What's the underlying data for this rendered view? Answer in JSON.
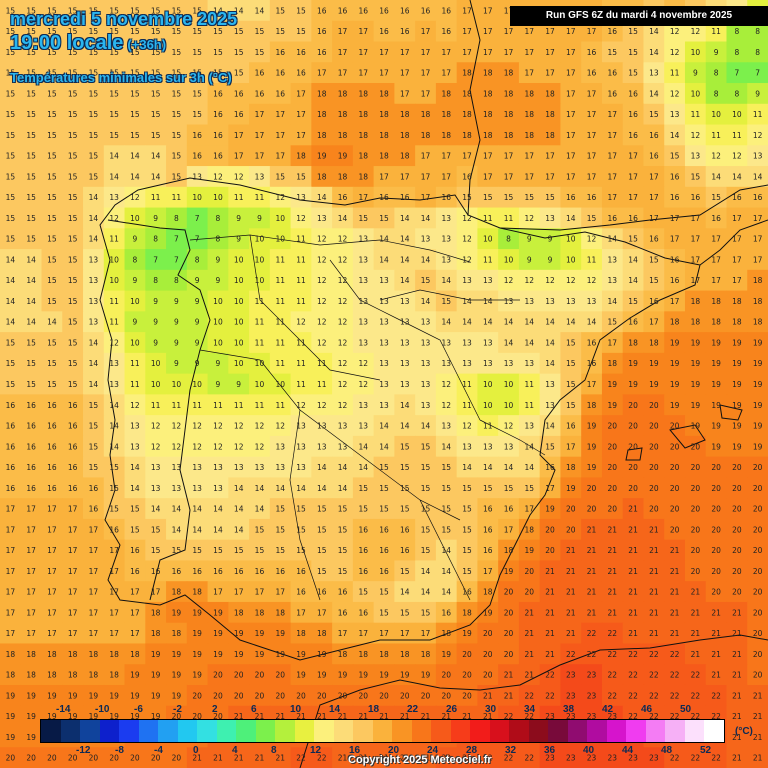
{
  "header": {
    "date_line": "mercredi 5 novembre 2025",
    "time_line": "19:00 locale",
    "lead_time": "(+36h)",
    "variable": "Températures minimales sur 3h (°C)",
    "run_info": "Run GFS 6Z du mardi 4 novembre 2025"
  },
  "legend": {
    "unit": "(°C)",
    "top_labels": [
      "-14",
      "-10",
      "-6",
      "-2",
      "2",
      "6",
      "10",
      "14",
      "18",
      "22",
      "26",
      "30",
      "34",
      "38",
      "42",
      "46",
      "50"
    ],
    "bottom_labels": [
      "-12",
      "-8",
      "-4",
      "0",
      "4",
      "8",
      "12",
      "16",
      "20",
      "24",
      "28",
      "32",
      "36",
      "40",
      "44",
      "48",
      "52"
    ],
    "colors": [
      "#071a46",
      "#0c2f6e",
      "#10439c",
      "#0d20cc",
      "#1b3cf0",
      "#1f72f2",
      "#22a0f2",
      "#22c8f0",
      "#33e0e2",
      "#3ef0b0",
      "#4ef07a",
      "#7cf04c",
      "#b4f03c",
      "#e8f040",
      "#fcf07c",
      "#fcdc78",
      "#fcc860",
      "#fab23c",
      "#f99424",
      "#f8761a",
      "#f65a1a",
      "#f63c1a",
      "#f21c1a",
      "#d8101c",
      "#b00c18",
      "#8c0c1c",
      "#780a3a",
      "#900c70",
      "#b00ca0",
      "#d614cc",
      "#f03cf0",
      "#f47cf4",
      "#f6b0f6",
      "#fce0fc",
      "#ffffff"
    ]
  },
  "map_data": {
    "grid_columns": 37,
    "grid_rows": 37,
    "origin_description": "sample values of min temperature grid",
    "rows": [
      [
        15,
        15,
        15,
        15,
        15,
        15,
        15,
        15,
        15,
        15,
        14,
        14,
        14,
        15,
        15,
        16,
        16,
        16,
        16,
        16,
        16,
        16,
        17,
        17,
        17,
        17,
        17,
        17,
        17,
        16,
        16,
        15,
        16,
        15,
        14,
        13,
        10
      ],
      [
        15,
        15,
        15,
        15,
        15,
        15,
        15,
        15,
        15,
        15,
        15,
        15,
        15,
        15,
        15,
        16,
        17,
        17,
        16,
        16,
        17,
        16,
        17,
        17,
        17,
        17,
        17,
        17,
        17,
        16,
        15,
        14,
        12,
        12,
        11,
        8,
        8
      ],
      [
        15,
        15,
        15,
        15,
        15,
        15,
        15,
        15,
        15,
        15,
        15,
        15,
        15,
        16,
        16,
        16,
        17,
        17,
        17,
        17,
        17,
        17,
        17,
        17,
        17,
        17,
        17,
        17,
        16,
        15,
        15,
        14,
        12,
        10,
        9,
        8,
        8
      ],
      [
        15,
        15,
        15,
        15,
        15,
        15,
        15,
        15,
        15,
        15,
        15,
        15,
        16,
        16,
        16,
        17,
        17,
        17,
        17,
        17,
        17,
        17,
        18,
        18,
        18,
        17,
        17,
        17,
        16,
        16,
        15,
        13,
        11,
        9,
        8,
        7,
        7
      ],
      [
        15,
        15,
        15,
        15,
        15,
        15,
        15,
        15,
        15,
        15,
        16,
        16,
        16,
        16,
        17,
        18,
        18,
        18,
        18,
        17,
        17,
        18,
        18,
        18,
        18,
        18,
        18,
        17,
        17,
        16,
        16,
        14,
        12,
        10,
        8,
        8,
        9
      ],
      [
        15,
        15,
        15,
        15,
        15,
        15,
        15,
        15,
        15,
        15,
        16,
        16,
        17,
        17,
        17,
        18,
        18,
        18,
        18,
        18,
        18,
        18,
        18,
        18,
        18,
        18,
        18,
        17,
        17,
        17,
        16,
        15,
        13,
        11,
        10,
        10,
        11
      ],
      [
        15,
        15,
        15,
        15,
        15,
        15,
        15,
        15,
        15,
        16,
        16,
        17,
        17,
        17,
        17,
        18,
        18,
        18,
        18,
        18,
        18,
        18,
        18,
        18,
        18,
        18,
        18,
        17,
        17,
        17,
        16,
        16,
        14,
        12,
        11,
        11,
        12
      ],
      [
        15,
        15,
        15,
        15,
        15,
        14,
        14,
        14,
        15,
        16,
        16,
        17,
        17,
        17,
        18,
        19,
        19,
        18,
        18,
        18,
        17,
        17,
        17,
        17,
        17,
        17,
        17,
        17,
        17,
        17,
        17,
        16,
        15,
        13,
        12,
        12,
        13
      ],
      [
        15,
        15,
        15,
        15,
        15,
        14,
        14,
        14,
        15,
        13,
        12,
        12,
        13,
        15,
        15,
        18,
        18,
        18,
        17,
        17,
        17,
        17,
        16,
        17,
        17,
        17,
        17,
        17,
        17,
        17,
        17,
        17,
        16,
        15,
        14,
        14,
        14
      ],
      [
        15,
        15,
        15,
        15,
        14,
        13,
        12,
        11,
        11,
        10,
        10,
        11,
        11,
        12,
        13,
        14,
        16,
        17,
        16,
        16,
        17,
        16,
        15,
        15,
        15,
        15,
        15,
        16,
        16,
        17,
        17,
        17,
        16,
        16,
        15,
        16,
        16
      ],
      [
        15,
        15,
        15,
        15,
        14,
        12,
        10,
        9,
        8,
        7,
        8,
        9,
        9,
        10,
        12,
        13,
        14,
        15,
        15,
        14,
        14,
        13,
        12,
        11,
        11,
        12,
        13,
        14,
        15,
        16,
        16,
        17,
        17,
        17,
        16,
        17,
        17
      ],
      [
        15,
        15,
        15,
        15,
        14,
        11,
        9,
        8,
        7,
        7,
        8,
        9,
        10,
        10,
        11,
        12,
        12,
        13,
        14,
        14,
        13,
        13,
        12,
        10,
        8,
        9,
        9,
        10,
        12,
        14,
        15,
        16,
        17,
        17,
        17,
        17,
        17
      ],
      [
        14,
        14,
        15,
        15,
        13,
        10,
        8,
        7,
        7,
        8,
        9,
        10,
        10,
        11,
        11,
        12,
        12,
        13,
        14,
        14,
        14,
        13,
        12,
        11,
        10,
        9,
        9,
        10,
        11,
        13,
        14,
        15,
        16,
        17,
        17,
        17,
        17
      ],
      [
        14,
        14,
        15,
        15,
        13,
        10,
        9,
        8,
        8,
        9,
        9,
        10,
        10,
        11,
        11,
        12,
        12,
        13,
        13,
        14,
        15,
        14,
        13,
        13,
        12,
        12,
        12,
        12,
        12,
        13,
        14,
        15,
        16,
        17,
        17,
        17,
        18
      ],
      [
        14,
        14,
        15,
        15,
        13,
        11,
        10,
        9,
        9,
        9,
        10,
        10,
        11,
        11,
        11,
        12,
        12,
        13,
        13,
        13,
        14,
        15,
        14,
        14,
        13,
        13,
        13,
        13,
        13,
        14,
        15,
        16,
        17,
        18,
        18,
        18,
        18
      ],
      [
        14,
        14,
        14,
        15,
        13,
        11,
        9,
        9,
        9,
        9,
        10,
        10,
        11,
        11,
        12,
        12,
        12,
        13,
        13,
        13,
        13,
        14,
        14,
        14,
        14,
        14,
        14,
        14,
        14,
        15,
        16,
        17,
        18,
        18,
        18,
        18,
        18
      ],
      [
        15,
        15,
        15,
        15,
        14,
        12,
        10,
        9,
        9,
        9,
        10,
        10,
        11,
        11,
        11,
        12,
        12,
        13,
        13,
        13,
        13,
        13,
        13,
        13,
        14,
        14,
        14,
        15,
        16,
        17,
        18,
        18,
        19,
        19,
        19,
        19,
        19
      ],
      [
        15,
        15,
        15,
        15,
        14,
        13,
        11,
        10,
        9,
        9,
        9,
        10,
        10,
        11,
        11,
        11,
        12,
        12,
        13,
        13,
        13,
        13,
        13,
        13,
        13,
        13,
        14,
        15,
        16,
        18,
        19,
        19,
        19,
        19,
        19,
        19,
        19
      ],
      [
        15,
        15,
        15,
        15,
        14,
        13,
        11,
        10,
        10,
        10,
        9,
        9,
        10,
        10,
        11,
        11,
        12,
        12,
        13,
        13,
        13,
        12,
        11,
        10,
        10,
        11,
        13,
        15,
        17,
        19,
        19,
        19,
        19,
        19,
        19,
        19,
        19
      ],
      [
        16,
        16,
        16,
        16,
        15,
        14,
        12,
        11,
        11,
        11,
        11,
        11,
        11,
        11,
        12,
        12,
        12,
        13,
        13,
        14,
        13,
        12,
        11,
        10,
        10,
        11,
        13,
        15,
        18,
        19,
        20,
        20,
        19,
        19,
        19,
        19,
        19
      ],
      [
        16,
        16,
        16,
        16,
        15,
        14,
        13,
        12,
        12,
        12,
        12,
        12,
        12,
        12,
        13,
        13,
        13,
        13,
        14,
        14,
        14,
        13,
        12,
        11,
        12,
        13,
        14,
        16,
        19,
        20,
        20,
        20,
        20,
        19,
        19,
        19,
        19
      ],
      [
        16,
        16,
        16,
        16,
        15,
        14,
        13,
        12,
        12,
        12,
        12,
        12,
        12,
        13,
        13,
        13,
        13,
        14,
        14,
        15,
        15,
        14,
        13,
        13,
        13,
        14,
        15,
        17,
        19,
        20,
        20,
        20,
        20,
        20,
        19,
        19,
        19
      ],
      [
        16,
        16,
        16,
        16,
        15,
        15,
        14,
        13,
        13,
        13,
        13,
        13,
        13,
        13,
        13,
        14,
        14,
        14,
        15,
        15,
        15,
        15,
        14,
        14,
        14,
        14,
        16,
        18,
        19,
        20,
        20,
        20,
        20,
        20,
        20,
        20,
        20
      ],
      [
        16,
        16,
        16,
        16,
        16,
        15,
        14,
        13,
        13,
        13,
        13,
        14,
        14,
        14,
        14,
        14,
        14,
        15,
        15,
        15,
        15,
        15,
        15,
        15,
        15,
        15,
        17,
        19,
        20,
        20,
        20,
        20,
        20,
        20,
        20,
        20,
        20
      ],
      [
        17,
        17,
        17,
        17,
        16,
        15,
        15,
        14,
        14,
        14,
        14,
        14,
        14,
        15,
        15,
        15,
        15,
        15,
        15,
        15,
        15,
        15,
        15,
        16,
        16,
        17,
        19,
        20,
        20,
        20,
        21,
        20,
        20,
        20,
        20,
        20,
        20
      ],
      [
        17,
        17,
        17,
        17,
        17,
        16,
        15,
        15,
        14,
        14,
        14,
        14,
        15,
        15,
        15,
        15,
        15,
        16,
        16,
        16,
        15,
        15,
        15,
        16,
        17,
        18,
        20,
        20,
        21,
        21,
        21,
        21,
        20,
        20,
        20,
        20,
        20
      ],
      [
        17,
        17,
        17,
        17,
        17,
        17,
        16,
        15,
        15,
        15,
        15,
        15,
        15,
        15,
        15,
        15,
        15,
        16,
        16,
        16,
        15,
        14,
        15,
        16,
        18,
        19,
        20,
        21,
        21,
        21,
        21,
        21,
        21,
        20,
        20,
        20,
        20
      ],
      [
        17,
        17,
        17,
        17,
        17,
        17,
        16,
        16,
        16,
        16,
        16,
        16,
        16,
        16,
        16,
        15,
        15,
        16,
        16,
        15,
        14,
        14,
        15,
        17,
        19,
        20,
        21,
        21,
        21,
        21,
        21,
        21,
        21,
        20,
        20,
        20,
        20
      ],
      [
        17,
        17,
        17,
        17,
        17,
        17,
        17,
        17,
        18,
        18,
        17,
        17,
        17,
        17,
        16,
        16,
        16,
        15,
        15,
        14,
        14,
        14,
        16,
        18,
        20,
        20,
        21,
        21,
        21,
        21,
        21,
        21,
        21,
        21,
        20,
        20,
        20
      ],
      [
        17,
        17,
        17,
        17,
        17,
        17,
        17,
        18,
        19,
        19,
        19,
        18,
        18,
        18,
        17,
        17,
        16,
        16,
        15,
        15,
        15,
        16,
        18,
        19,
        20,
        21,
        21,
        21,
        21,
        21,
        21,
        21,
        21,
        21,
        21,
        21,
        20
      ],
      [
        17,
        17,
        17,
        17,
        17,
        17,
        17,
        18,
        18,
        19,
        19,
        19,
        19,
        19,
        18,
        18,
        17,
        17,
        17,
        17,
        17,
        18,
        19,
        20,
        20,
        21,
        21,
        21,
        22,
        22,
        21,
        21,
        21,
        21,
        21,
        21,
        20
      ],
      [
        18,
        18,
        18,
        18,
        18,
        18,
        18,
        19,
        19,
        19,
        19,
        19,
        19,
        19,
        19,
        19,
        18,
        18,
        18,
        18,
        18,
        19,
        20,
        20,
        20,
        21,
        21,
        22,
        22,
        22,
        22,
        22,
        22,
        21,
        21,
        21,
        20
      ],
      [
        18,
        18,
        18,
        18,
        18,
        18,
        19,
        19,
        19,
        19,
        20,
        20,
        20,
        20,
        19,
        19,
        19,
        19,
        19,
        19,
        19,
        20,
        20,
        20,
        21,
        21,
        22,
        23,
        23,
        22,
        22,
        22,
        22,
        22,
        21,
        21,
        20
      ],
      [
        19,
        19,
        19,
        19,
        19,
        19,
        19,
        19,
        19,
        20,
        20,
        20,
        20,
        20,
        20,
        20,
        20,
        20,
        20,
        20,
        20,
        20,
        20,
        21,
        21,
        22,
        22,
        23,
        23,
        22,
        22,
        22,
        22,
        22,
        22,
        21,
        21
      ],
      [
        19,
        19,
        19,
        19,
        19,
        19,
        19,
        19,
        20,
        20,
        20,
        21,
        21,
        21,
        21,
        21,
        21,
        21,
        21,
        21,
        21,
        21,
        21,
        21,
        22,
        22,
        23,
        23,
        23,
        23,
        22,
        22,
        22,
        22,
        22,
        21,
        21
      ],
      [
        19,
        19,
        19,
        19,
        19,
        19,
        20,
        20,
        20,
        20,
        21,
        21,
        21,
        21,
        21,
        21,
        21,
        21,
        21,
        21,
        21,
        21,
        22,
        22,
        22,
        22,
        23,
        23,
        23,
        23,
        23,
        22,
        22,
        22,
        22,
        21,
        21
      ],
      [
        20,
        20,
        20,
        20,
        20,
        20,
        20,
        20,
        20,
        21,
        21,
        21,
        21,
        21,
        22,
        22,
        21,
        21,
        21,
        21,
        21,
        22,
        22,
        22,
        22,
        22,
        23,
        23,
        23,
        23,
        23,
        23,
        22,
        22,
        22,
        21,
        21
      ]
    ]
  },
  "footer": {
    "copyright": "Copyright 2025 Meteociel.fr"
  }
}
